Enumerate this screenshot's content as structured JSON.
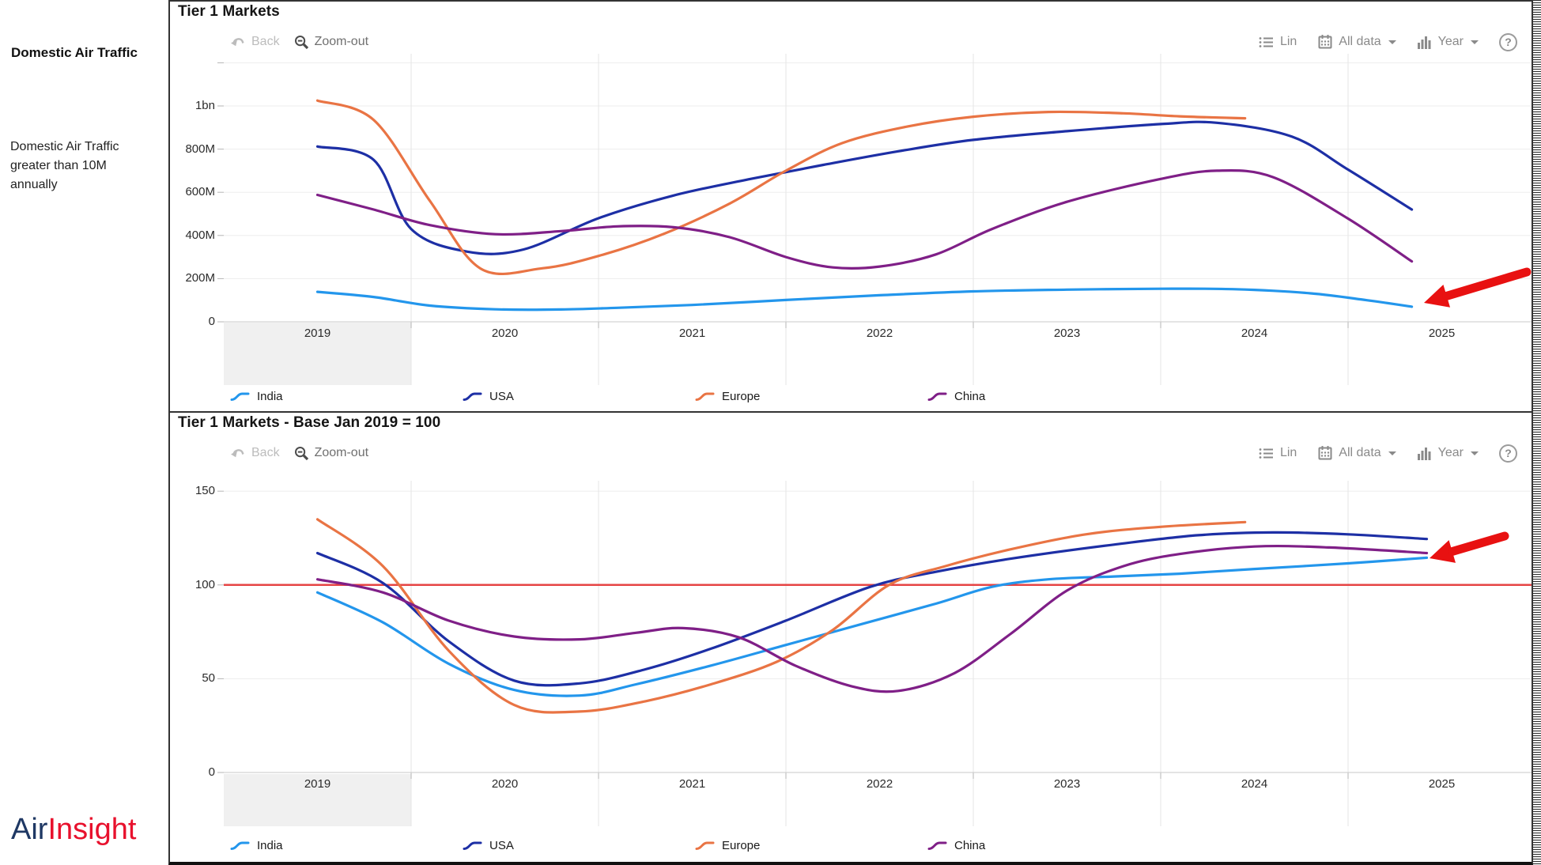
{
  "sidebar": {
    "title": "Domestic Air Traffic",
    "description": "Domestic Air Traffic greater than 10M annually",
    "logo_air": "Air",
    "logo_insight": "Insight"
  },
  "toolbar": {
    "back": "Back",
    "zoom_out": "Zoom-out",
    "lin": "Lin",
    "all_data": "All data",
    "year": "Year",
    "help": "?"
  },
  "colors": {
    "india": "#2396ec",
    "usa": "#1d2fa5",
    "europe": "#e97444",
    "china": "#7f1f87",
    "baseline_red": "#e64444",
    "arrow_red": "#e81111",
    "logo_blue": "#1f3864",
    "logo_red": "#e8112d",
    "band_gray": "#f0f0f0"
  },
  "chart_data": [
    {
      "type": "line",
      "title": "Tier 1 Markets",
      "x_ticks": [
        "2019",
        "2020",
        "2021",
        "2022",
        "2023",
        "2024",
        "2025"
      ],
      "y_ticks": [
        {
          "label": "0",
          "value": 0
        },
        {
          "label": "200M",
          "value": 200
        },
        {
          "label": "400M",
          "value": 400
        },
        {
          "label": "600M",
          "value": 600
        },
        {
          "label": "800M",
          "value": 800
        },
        {
          "label": "1bn",
          "value": 1000
        }
      ],
      "ylim": [
        0,
        1200
      ],
      "x_range": [
        2019,
        2026
      ],
      "unit": "annual domestic passengers (millions)",
      "legend_position": "bottom",
      "grid": true,
      "series": [
        {
          "name": "India",
          "color": "#2396ec",
          "points": [
            [
              2019.5,
              139
            ],
            [
              2019.8,
              115
            ],
            [
              2020.1,
              75
            ],
            [
              2020.45,
              58
            ],
            [
              2020.8,
              57
            ],
            [
              2021.1,
              65
            ],
            [
              2021.5,
              78
            ],
            [
              2022.0,
              101
            ],
            [
              2022.5,
              123
            ],
            [
              2023.0,
              141
            ],
            [
              2023.5,
              149
            ],
            [
              2024.0,
              153
            ],
            [
              2024.4,
              151
            ],
            [
              2024.8,
              132
            ],
            [
              2025.1,
              100
            ],
            [
              2025.34,
              70
            ]
          ]
        },
        {
          "name": "USA",
          "color": "#1d2fa5",
          "points": [
            [
              2019.5,
              812
            ],
            [
              2019.8,
              750
            ],
            [
              2020.0,
              430
            ],
            [
              2020.3,
              325
            ],
            [
              2020.6,
              335
            ],
            [
              2021.0,
              480
            ],
            [
              2021.4,
              585
            ],
            [
              2021.8,
              660
            ],
            [
              2022.2,
              727
            ],
            [
              2022.6,
              790
            ],
            [
              2023.0,
              843
            ],
            [
              2023.5,
              883
            ],
            [
              2024.0,
              916
            ],
            [
              2024.3,
              922
            ],
            [
              2024.7,
              858
            ],
            [
              2025.0,
              705
            ],
            [
              2025.34,
              520
            ]
          ]
        },
        {
          "name": "Europe",
          "color": "#e97444",
          "points": [
            [
              2019.5,
              1025
            ],
            [
              2019.8,
              935
            ],
            [
              2020.1,
              560
            ],
            [
              2020.37,
              247
            ],
            [
              2020.7,
              248
            ],
            [
              2021.0,
              305
            ],
            [
              2021.35,
              408
            ],
            [
              2021.7,
              548
            ],
            [
              2022.0,
              700
            ],
            [
              2022.3,
              828
            ],
            [
              2022.65,
              905
            ],
            [
              2023.0,
              950
            ],
            [
              2023.4,
              972
            ],
            [
              2023.8,
              966
            ],
            [
              2024.1,
              952
            ],
            [
              2024.45,
              943
            ]
          ]
        },
        {
          "name": "China",
          "color": "#7f1f87",
          "points": [
            [
              2019.5,
              588
            ],
            [
              2019.8,
              520
            ],
            [
              2020.1,
              448
            ],
            [
              2020.45,
              406
            ],
            [
              2020.8,
              420
            ],
            [
              2021.1,
              442
            ],
            [
              2021.4,
              438
            ],
            [
              2021.7,
              392
            ],
            [
              2022.0,
              300
            ],
            [
              2022.25,
              252
            ],
            [
              2022.5,
              256
            ],
            [
              2022.8,
              312
            ],
            [
              2023.1,
              430
            ],
            [
              2023.5,
              556
            ],
            [
              2024.0,
              662
            ],
            [
              2024.3,
              700
            ],
            [
              2024.6,
              670
            ],
            [
              2025.0,
              478
            ],
            [
              2025.34,
              280
            ]
          ]
        }
      ]
    },
    {
      "type": "line",
      "title": "Tier 1 Markets - Base Jan 2019 = 100",
      "x_ticks": [
        "2019",
        "2020",
        "2021",
        "2022",
        "2023",
        "2024",
        "2025"
      ],
      "y_ticks": [
        {
          "label": "0",
          "value": 0
        },
        {
          "label": "50",
          "value": 50
        },
        {
          "label": "100",
          "value": 100
        },
        {
          "label": "150",
          "value": 150
        }
      ],
      "ylim": [
        0,
        158
      ],
      "x_range": [
        2019,
        2026
      ],
      "unit": "index, Jan 2019 = 100",
      "legend_position": "bottom",
      "grid": true,
      "reference_line": {
        "value": 100,
        "color": "#e64444"
      },
      "series": [
        {
          "name": "India",
          "color": "#2396ec",
          "points": [
            [
              2019.5,
              96
            ],
            [
              2019.85,
              80
            ],
            [
              2020.2,
              58
            ],
            [
              2020.55,
              44
            ],
            [
              2020.9,
              41
            ],
            [
              2021.2,
              47
            ],
            [
              2021.6,
              57
            ],
            [
              2022.0,
              68
            ],
            [
              2022.4,
              79
            ],
            [
              2022.8,
              90
            ],
            [
              2023.1,
              99
            ],
            [
              2023.4,
              103
            ],
            [
              2023.75,
              104.5
            ],
            [
              2024.1,
              106
            ],
            [
              2024.5,
              108.5
            ],
            [
              2025.0,
              111.5
            ],
            [
              2025.42,
              114.5
            ]
          ]
        },
        {
          "name": "USA",
          "color": "#1d2fa5",
          "points": [
            [
              2019.5,
              117
            ],
            [
              2019.85,
              101
            ],
            [
              2020.2,
              70
            ],
            [
              2020.55,
              49
            ],
            [
              2020.9,
              47.5
            ],
            [
              2021.25,
              55
            ],
            [
              2021.6,
              66
            ],
            [
              2022.0,
              81
            ],
            [
              2022.45,
              99
            ],
            [
              2022.8,
              107
            ],
            [
              2023.2,
              114
            ],
            [
              2023.75,
              121.5
            ],
            [
              2024.2,
              126.5
            ],
            [
              2024.6,
              128
            ],
            [
              2025.0,
              127
            ],
            [
              2025.42,
              124.5
            ]
          ]
        },
        {
          "name": "Europe",
          "color": "#e97444",
          "points": [
            [
              2019.5,
              135
            ],
            [
              2019.85,
              110
            ],
            [
              2020.2,
              65
            ],
            [
              2020.55,
              36
            ],
            [
              2020.9,
              32.5
            ],
            [
              2021.25,
              38
            ],
            [
              2021.6,
              47
            ],
            [
              2021.95,
              59
            ],
            [
              2022.25,
              76
            ],
            [
              2022.55,
              100
            ],
            [
              2022.85,
              110
            ],
            [
              2023.2,
              119
            ],
            [
              2023.6,
              127
            ],
            [
              2024.0,
              131
            ],
            [
              2024.45,
              133.5
            ]
          ]
        },
        {
          "name": "China",
          "color": "#7f1f87",
          "points": [
            [
              2019.5,
              103
            ],
            [
              2019.85,
              96
            ],
            [
              2020.2,
              81
            ],
            [
              2020.55,
              72.5
            ],
            [
              2020.9,
              71
            ],
            [
              2021.2,
              74.5
            ],
            [
              2021.45,
              77
            ],
            [
              2021.75,
              72
            ],
            [
              2022.05,
              57
            ],
            [
              2022.35,
              46
            ],
            [
              2022.6,
              43.5
            ],
            [
              2022.9,
              53
            ],
            [
              2023.2,
              74
            ],
            [
              2023.5,
              97
            ],
            [
              2023.8,
              110
            ],
            [
              2024.1,
              116.5
            ],
            [
              2024.5,
              120.5
            ],
            [
              2024.9,
              120
            ],
            [
              2025.42,
              117
            ]
          ]
        }
      ]
    }
  ],
  "annotations": {
    "arrows": [
      {
        "panel": 0,
        "tip": [
          1586,
          381
        ],
        "tail": [
          1716,
          342
        ]
      },
      {
        "panel": 1,
        "tip": [
          1593,
          184
        ],
        "tail": [
          1688,
          156
        ]
      }
    ]
  }
}
